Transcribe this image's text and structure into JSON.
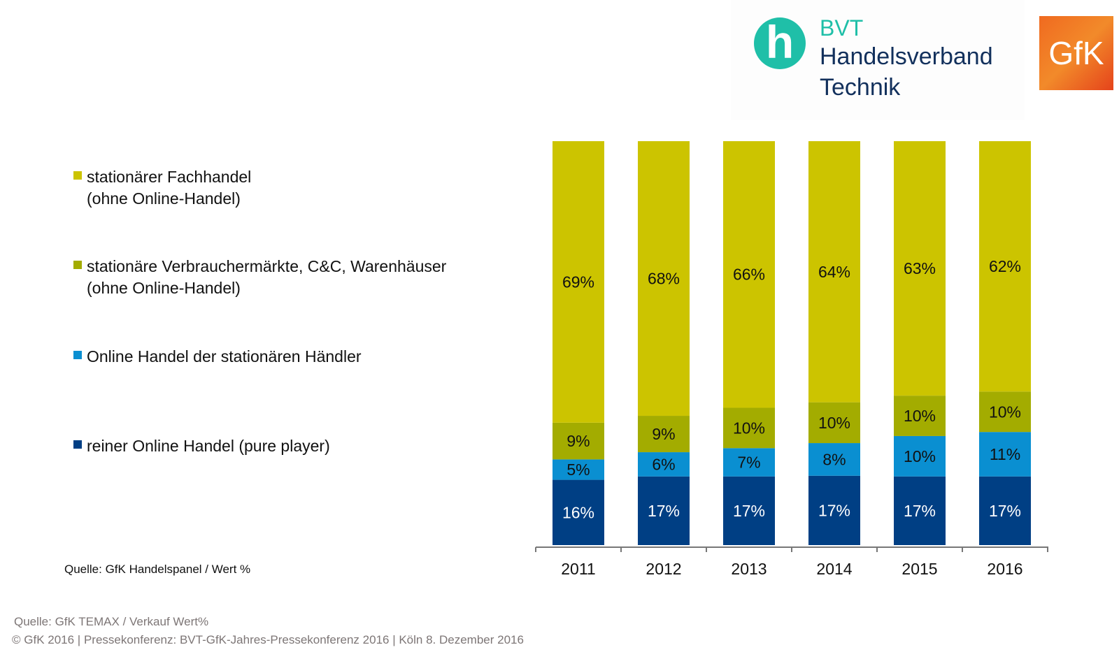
{
  "logos": {
    "bvt": {
      "line1": "BVT",
      "line2": "Handelsverband",
      "line3": "Technik",
      "mark": "h"
    },
    "gfk": {
      "text": "GfK"
    }
  },
  "chart_data": {
    "type": "bar",
    "stacked": true,
    "categories": [
      "2011",
      "2012",
      "2013",
      "2014",
      "2015",
      "2016"
    ],
    "series": [
      {
        "name": "reiner Online Handel (pure player)",
        "color": "#003f84",
        "label_color": "#ffffff",
        "values": [
          16,
          17,
          17,
          17,
          17,
          17
        ]
      },
      {
        "name": "Online Handel der stationären Händler",
        "color": "#0a8fd1",
        "label_color": "#111111",
        "values": [
          5,
          6,
          7,
          8,
          10,
          11
        ]
      },
      {
        "name": "stationäre Verbrauchermärkte, C&C, Warenhäuser (ohne Online-Handel)",
        "color": "#a3ac00",
        "label_color": "#111111",
        "values": [
          9,
          9,
          10,
          10,
          10,
          10
        ]
      },
      {
        "name": "stationärer Fachhandel (ohne Online-Handel)",
        "color": "#ccc400",
        "label_color": "#111111",
        "values": [
          69,
          68,
          66,
          64,
          63,
          62
        ]
      }
    ],
    "value_suffix": "%",
    "legend_position": "left",
    "grid": false
  },
  "legend": [
    {
      "line1": "stationärer Fachhandel",
      "line2": "(ohne Online-Handel)",
      "color": "#ccc400"
    },
    {
      "line1": "stationäre Verbrauchermärkte, C&C, Warenhäuser",
      "line2": "(ohne Online-Handel)",
      "color": "#a3ac00"
    },
    {
      "line1": "Online Handel der stationären Händler",
      "line2": "",
      "color": "#0a8fd1"
    },
    {
      "line1": "reiner Online Handel (pure player)",
      "line2": "",
      "color": "#003f84"
    }
  ],
  "source_chart": "Quelle: GfK Handelspanel / Wert %",
  "source_footer": "Quelle: GfK TEMAX / Verkauf Wert%",
  "copyright": "© GfK 2016 | Pressekonferenz: BVT-GfK-Jahres-Pressekonferenz 2016 | Köln 8. Dezember 2016"
}
